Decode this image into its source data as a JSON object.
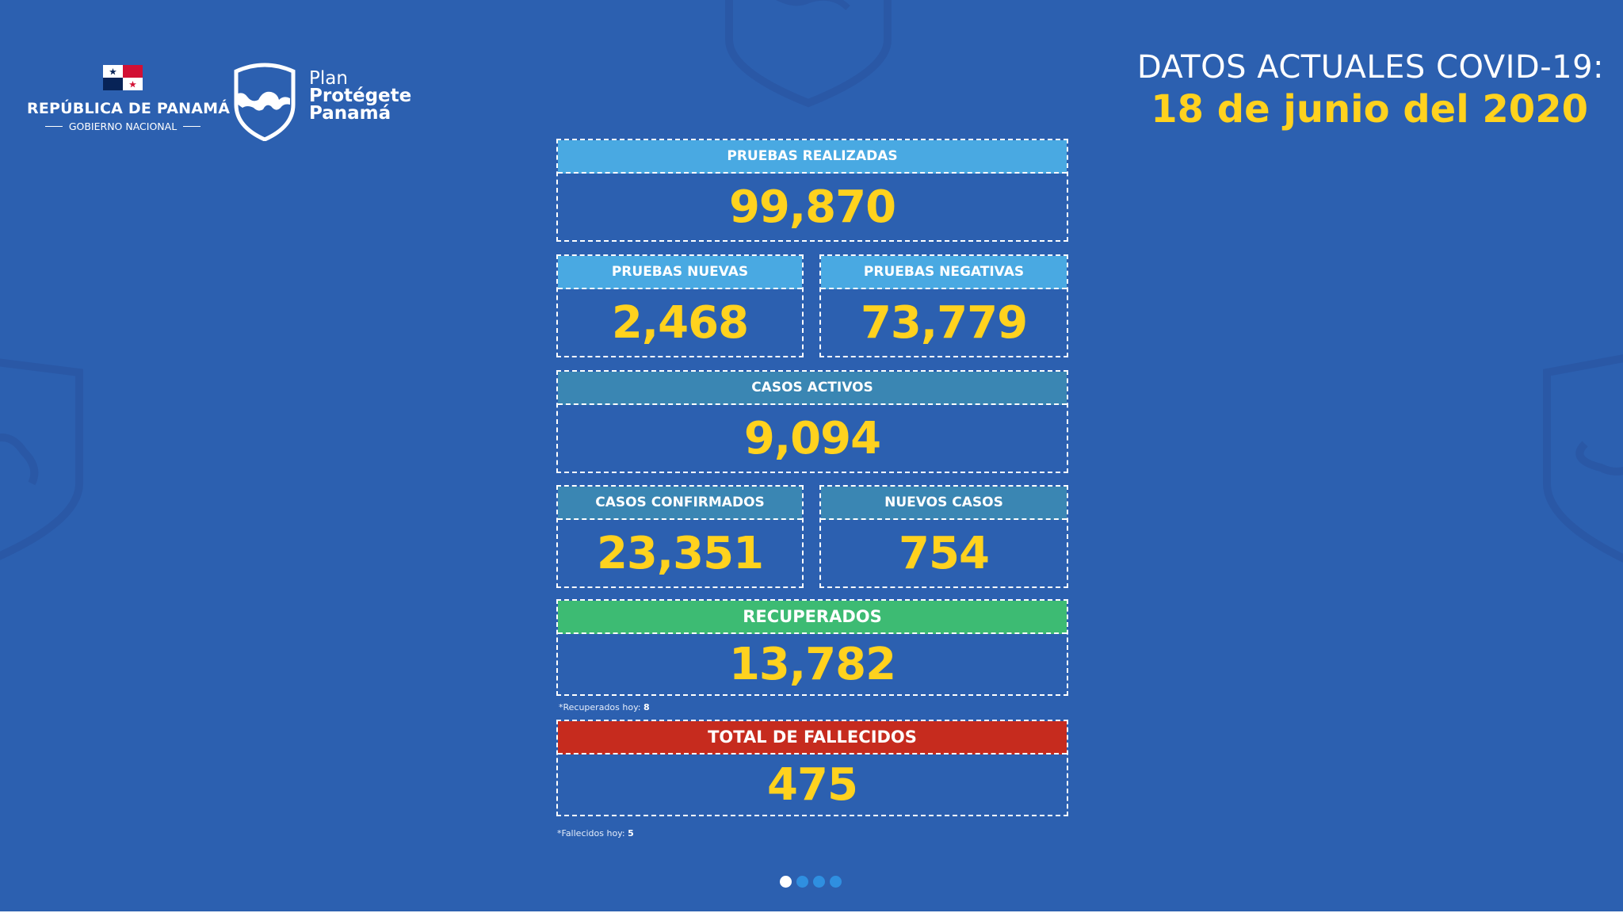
{
  "government": {
    "name": "REPÚBLICA DE PANAMÁ",
    "subtitle": "GOBIERNO NACIONAL"
  },
  "plan": {
    "line1": "Plan",
    "line2": "Protégete",
    "line3": "Panamá"
  },
  "headline": {
    "title": "DATOS ACTUALES COVID-19:",
    "date": "18 de junio del 2020"
  },
  "stats": {
    "pruebas_realizadas": {
      "label": "PRUEBAS REALIZADAS",
      "value": "99,870"
    },
    "pruebas_nuevas": {
      "label": "PRUEBAS NUEVAS",
      "value": "2,468"
    },
    "pruebas_negativas": {
      "label": "PRUEBAS NEGATIVAS",
      "value": "73,779"
    },
    "casos_activos": {
      "label": "CASOS ACTIVOS",
      "value": "9,094"
    },
    "casos_confirmados": {
      "label": "CASOS CONFIRMADOS",
      "value": "23,351"
    },
    "nuevos_casos": {
      "label": "NUEVOS CASOS",
      "value": "754"
    },
    "recuperados": {
      "label": "RECUPERADOS",
      "value": "13,782",
      "note_label": "*Recuperados hoy:",
      "note_value": "8"
    },
    "fallecidos": {
      "label": "TOTAL DE FALLECIDOS",
      "value": "475",
      "note_label": "*Fallecidos hoy:",
      "note_value": "5"
    }
  },
  "carousel": {
    "count": 4,
    "active_index": 0
  },
  "colors": {
    "background": "#2c60b0",
    "accent_yellow": "#ffd21e",
    "label_sky": "#49a9e2",
    "label_teal": "#3a86b3",
    "label_green": "#3dbb73",
    "label_red": "#c62b1e"
  }
}
